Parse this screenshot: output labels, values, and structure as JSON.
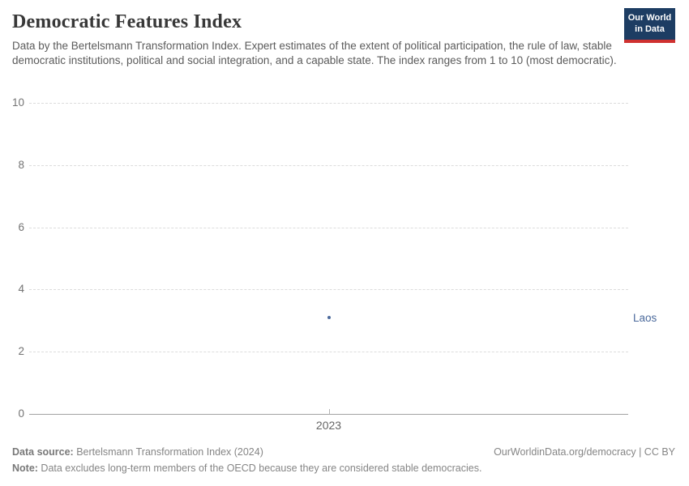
{
  "header": {
    "title": "Democratic Features Index",
    "subtitle": "Data by the Bertelsmann Transformation Index. Expert estimates of the extent of political participation, the rule of law, stable democratic institutions, political and social integration, and a capable state. The index ranges from 1 to 10 (most democratic).",
    "logo": {
      "line1": "Our World",
      "line2": "in Data",
      "bg_color": "#1d3d63",
      "bar_color": "#cf3130"
    }
  },
  "chart_data": {
    "type": "scatter",
    "title": "Democratic Features Index",
    "x": [
      2023
    ],
    "series": [
      {
        "name": "Laos",
        "values": [
          3.1
        ],
        "color": "#4c6a9c"
      }
    ],
    "xlabel": "",
    "ylabel": "",
    "ylim": [
      0,
      10
    ],
    "yticks": [
      0,
      2,
      4,
      6,
      8,
      10
    ],
    "xticks": [
      "2023"
    ],
    "grid": true,
    "grid_color": "#dcdcdc",
    "baseline_color": "#a3a3a3",
    "legend_position": "entity-label-right"
  },
  "footer": {
    "data_source_label": "Data source:",
    "data_source_text": " Bertelsmann Transformation Index (2024)",
    "attribution": "OurWorldinData.org/democracy | CC BY",
    "note_label": "Note:",
    "note_text": " Data excludes long-term members of the OECD because they are considered stable democracies."
  }
}
